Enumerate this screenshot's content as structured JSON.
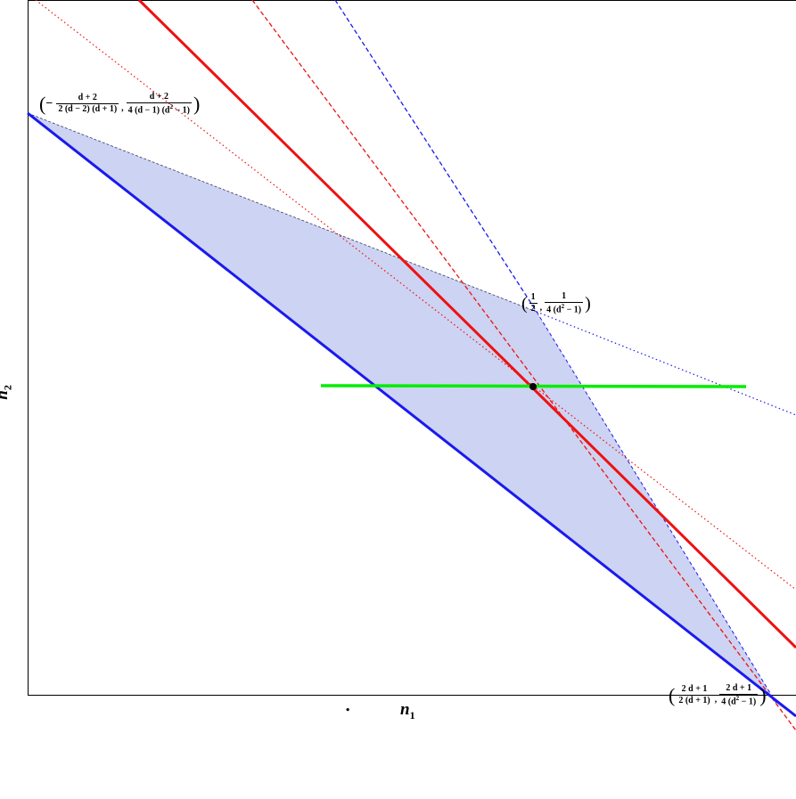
{
  "axes": {
    "x_label": "n",
    "x_label_sub": "1",
    "y_label": "n",
    "y_label_sub": "2",
    "footer_dot": "."
  },
  "labels": {
    "top_left": {
      "sign": "−",
      "x_num": "d + 2",
      "x_den": "2 (d − 2) (d + 1)",
      "y_num": "d + 2",
      "y_den_pre": "4 (d − 1) (d",
      "y_den_sup": "2",
      "y_den_post": " − 1)"
    },
    "middle": {
      "x_num": "1",
      "x_den": "2",
      "y_num": "1",
      "y_den_pre": "4 (d",
      "y_den_sup": "2",
      "y_den_post": " − 1)"
    },
    "bottom_right": {
      "x_num": "2 d + 1",
      "x_den": "2 (d + 1)",
      "y_num": "2 d + 1",
      "y_den_pre": "4 (d",
      "y_den_sup": "2",
      "y_den_post": " − 1)"
    }
  },
  "colors": {
    "region_fill": "#cdd3f2",
    "blue": "#1a1aee",
    "red": "#ee1111",
    "green": "#00ee00",
    "frame": "#000000"
  }
}
